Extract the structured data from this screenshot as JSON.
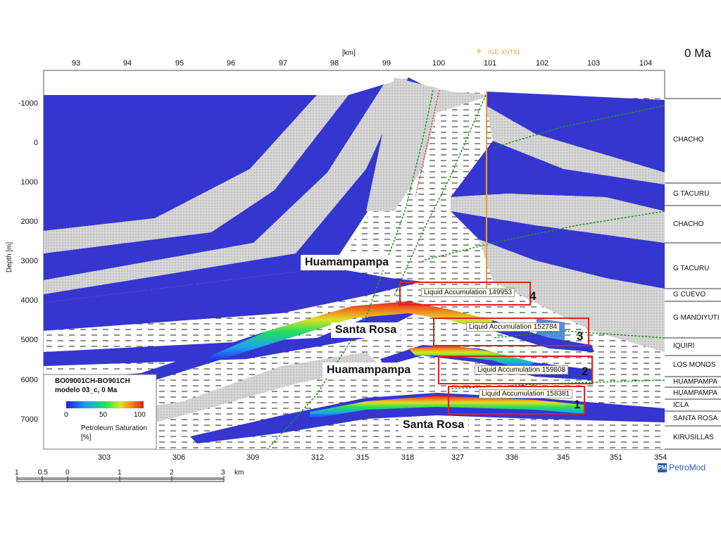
{
  "header": {
    "km_label": "[km]",
    "time_label": "0 Ma",
    "well_label": "IGE-XST91"
  },
  "top_axis": [
    "93",
    "94",
    "95",
    "96",
    "97",
    "98",
    "99",
    "100",
    "101",
    "102",
    "103",
    "104"
  ],
  "bottom_axis": [
    "303",
    "306",
    "309",
    "312",
    "315",
    "318",
    "327",
    "336",
    "345",
    "351",
    "354"
  ],
  "depth_axis": {
    "title": "Depth [m]",
    "ticks": [
      "-1000",
      "0",
      "1000",
      "2000",
      "3000",
      "4000",
      "5000",
      "6000",
      "7000"
    ]
  },
  "formations": [
    "CHACHO",
    "G TACURU",
    "CHACHO",
    "G TACURU",
    "G CUEVO",
    "G MANDIYUTI",
    "IQUIRI",
    "LOS MONOS",
    "HUAMPAMPA",
    "HUAMPAMPA",
    "ICLA",
    "SANTA ROSA",
    "KIRUSILLAS"
  ],
  "section_labels": [
    "Huamampampa",
    "Santa Rosa",
    "Huamampampa",
    "Santa Rosa"
  ],
  "accumulations": [
    {
      "text": "Liquid Accumulation 149953",
      "num": "4"
    },
    {
      "text": "Liquid Accumulation 152784",
      "num": "3"
    },
    {
      "text": "Liquid Accumulation 159808",
      "num": "2"
    },
    {
      "text": "Liquid Accumulation 158381",
      "num": "1"
    }
  ],
  "legend": {
    "line1": "BO09001CH-BO901CH",
    "line2": "modelo 03_c, 0 Ma",
    "ticks": [
      "0",
      "50",
      "100"
    ],
    "label": "Petroleum Saturation",
    "unit": "[%]"
  },
  "scale_bar": {
    "ticks": [
      "1",
      "0.5",
      "0",
      "1",
      "2",
      "3"
    ],
    "unit": "km"
  },
  "logo": "PetroMod",
  "colors": {
    "layer_blue": "#3535d0",
    "layer_grey": "#d8d8d8",
    "accent_red": "#e02020",
    "fault_green": "#1a9a1a"
  }
}
